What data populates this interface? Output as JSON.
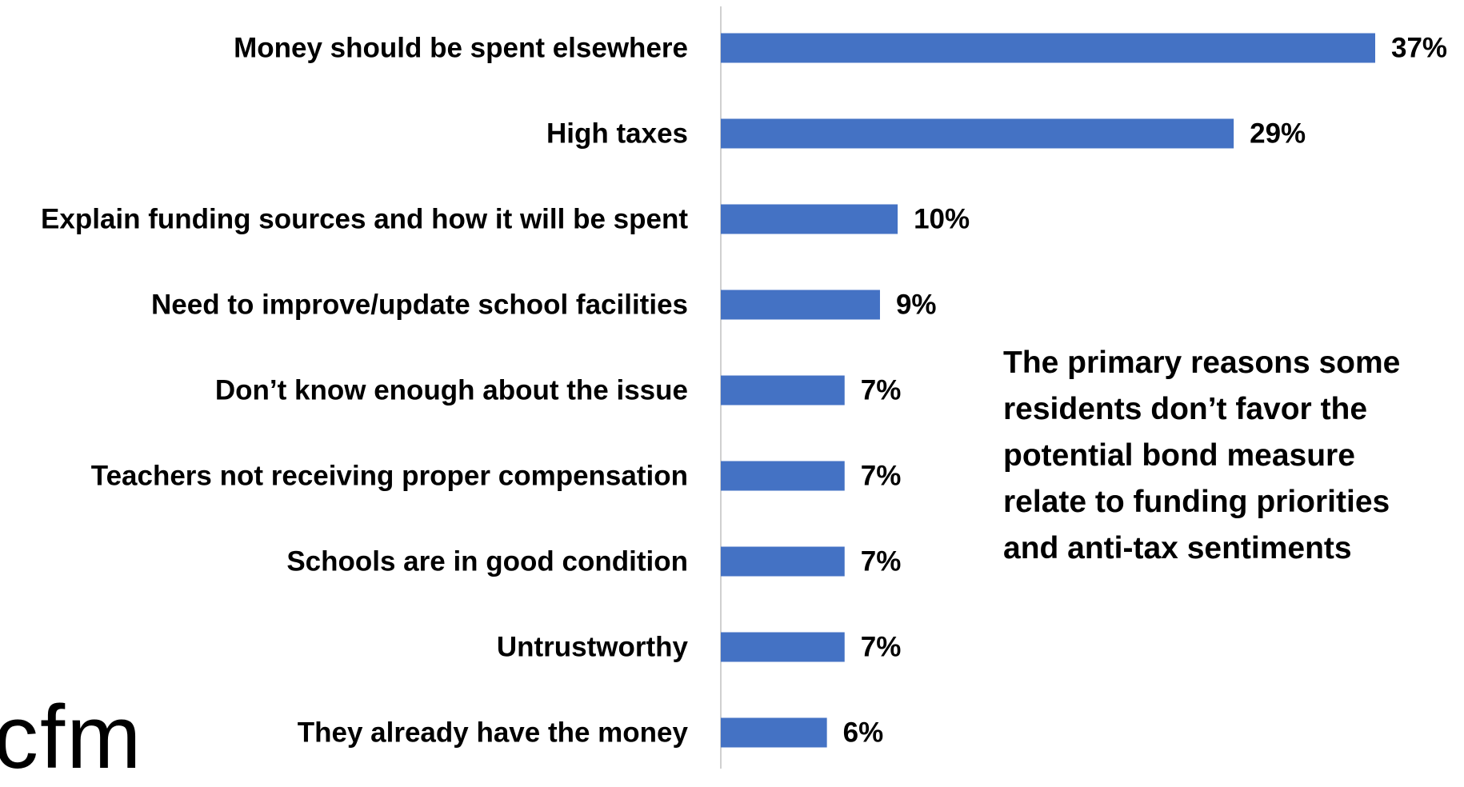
{
  "chart_data": {
    "type": "bar",
    "orientation": "horizontal",
    "categories": [
      "Money should be spent elsewhere",
      "High taxes",
      "Explain funding sources and how it will be spent",
      "Need to improve/update school facilities",
      "Don’t know enough about the issue",
      "Teachers not receiving proper compensation",
      "Schools are in good condition",
      "Untrustworthy",
      "They already have the money"
    ],
    "values": [
      37,
      29,
      10,
      9,
      7,
      7,
      7,
      7,
      6
    ],
    "value_labels": [
      "37%",
      "29%",
      "10%",
      "9%",
      "7%",
      "7%",
      "7%",
      "7%",
      "6%"
    ],
    "xlim": [
      0,
      37
    ],
    "grid": false,
    "bar_color": "#4472c4"
  },
  "annotation": "The primary reasons some\nresidents don’t favor the\npotential bond measure\nrelate to funding priorities\nand anti-tax sentiments",
  "logo_text": "cfm"
}
